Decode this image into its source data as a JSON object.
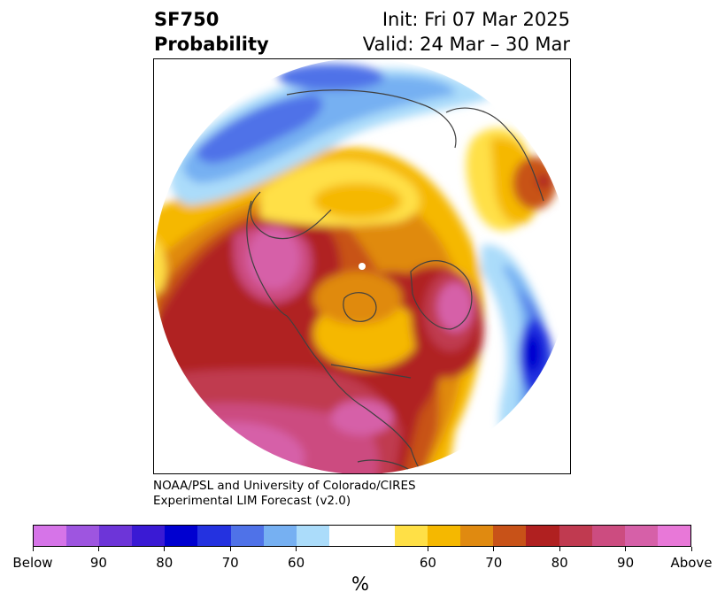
{
  "header": {
    "title_line1": "SF750",
    "title_line2": "Probability",
    "init": "Init: Fri 07 Mar 2025",
    "valid": "Valid: 24 Mar – 30 Mar"
  },
  "credit": {
    "line1": "NOAA/PSL and University of Colorado/CIRES",
    "line2": "Experimental LIM Forecast (v2.0)"
  },
  "colorbar": {
    "colors": [
      "#d674e8",
      "#9e55e0",
      "#6d35d8",
      "#3a1ad4",
      "#0000d0",
      "#2432e0",
      "#4f72e8",
      "#76b0f2",
      "#abdcfa",
      "#ffffff",
      "#ffffff",
      "#ffe046",
      "#f5b800",
      "#e08a10",
      "#c85218",
      "#b02020",
      "#c03a50",
      "#cc4c80",
      "#d660a8",
      "#e878d8"
    ],
    "tick_labels": [
      "Below",
      "90",
      "80",
      "70",
      "60",
      "60",
      "70",
      "80",
      "90",
      "Above"
    ],
    "unit": "%"
  },
  "map_colors": {
    "pink": "#d660a8",
    "rose": "#cc4c80",
    "crimson": "#c03a50",
    "red": "#b02020",
    "orange_dark": "#c85218",
    "orange": "#e08a10",
    "amber": "#f5b800",
    "yellow": "#ffe046",
    "light_blue": "#abdcfa",
    "sky_blue": "#76b0f2",
    "medium_blue": "#4f72e8",
    "royal_blue": "#2432e0",
    "deep_blue": "#0000d0",
    "coastline": "#404040"
  }
}
